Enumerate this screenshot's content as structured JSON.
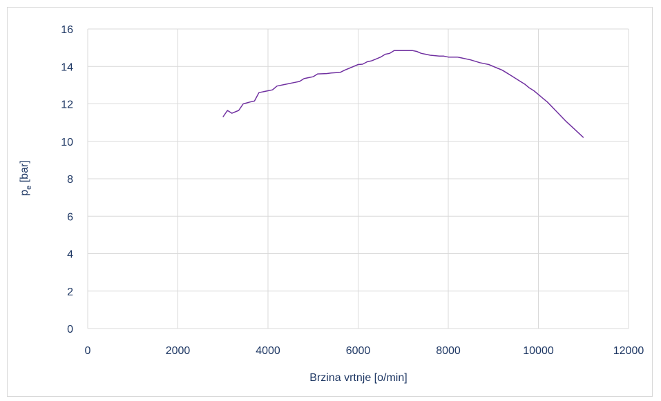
{
  "chart_data": {
    "type": "line",
    "title": "",
    "xlabel": "Brzina vrtnje [o/min]",
    "ylabel_main": "p",
    "ylabel_sub": "e",
    "ylabel_unit": " [bar]",
    "xlim": [
      0,
      12000
    ],
    "ylim": [
      0,
      16
    ],
    "x_ticks": [
      0,
      2000,
      4000,
      6000,
      8000,
      10000,
      12000
    ],
    "y_ticks": [
      0,
      2,
      4,
      6,
      8,
      10,
      12,
      14,
      16
    ],
    "x_tick_labels": [
      "0",
      "2000",
      "4000",
      "6000",
      "8000",
      "10000",
      "12000"
    ],
    "y_tick_labels": [
      "0",
      "2",
      "4",
      "6",
      "8",
      "10",
      "12",
      "14",
      "16"
    ],
    "grid": true,
    "legend": "none",
    "colors": {
      "series": "#7030a0",
      "grid": "#d9d9d9",
      "text": "#1f3864"
    },
    "series": [
      {
        "x": [
          3000,
          3100,
          3200,
          3350,
          3450,
          3600,
          3700,
          3800,
          4000,
          4100,
          4200,
          4400,
          4600,
          4700,
          4800,
          4900,
          5000,
          5100,
          5300,
          5400,
          5600,
          5700,
          5800,
          6000,
          6100,
          6200,
          6300,
          6400,
          6500,
          6600,
          6700,
          6800,
          6900,
          7000,
          7200,
          7300,
          7400,
          7500,
          7600,
          7800,
          7900,
          8000,
          8200,
          8300,
          8500,
          8700,
          8800,
          8900,
          9000,
          9100,
          9200,
          9300,
          9400,
          9500,
          9600,
          9700,
          9800,
          9900,
          10000,
          10100,
          10200,
          10400,
          10600,
          10800,
          11000
        ],
        "y": [
          11.3,
          11.65,
          11.5,
          11.65,
          12.0,
          12.1,
          12.15,
          12.6,
          12.7,
          12.75,
          12.95,
          13.05,
          13.15,
          13.2,
          13.35,
          13.4,
          13.45,
          13.6,
          13.62,
          13.65,
          13.68,
          13.8,
          13.9,
          14.1,
          14.12,
          14.25,
          14.3,
          14.4,
          14.5,
          14.65,
          14.7,
          14.85,
          14.85,
          14.85,
          14.85,
          14.8,
          14.7,
          14.65,
          14.6,
          14.55,
          14.55,
          14.5,
          14.5,
          14.45,
          14.35,
          14.2,
          14.15,
          14.1,
          14.0,
          13.9,
          13.8,
          13.65,
          13.5,
          13.35,
          13.2,
          13.05,
          12.85,
          12.7,
          12.5,
          12.3,
          12.1,
          11.6,
          11.1,
          10.65,
          10.2
        ]
      }
    ]
  }
}
